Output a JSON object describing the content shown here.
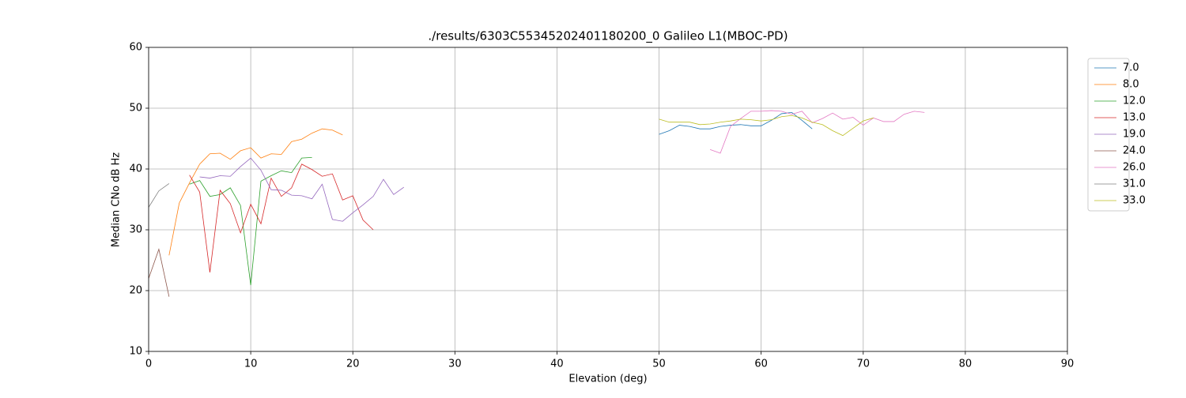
{
  "chart_data": {
    "type": "line",
    "title": "./results/6303C55345202401180200_0 Galileo L1(MBOC-PD)",
    "x_label": "Elevation (deg)",
    "y_label": "Median CNo dB Hz",
    "xlim": [
      0,
      90
    ],
    "ylim": [
      10,
      60
    ],
    "xticks": [
      0,
      10,
      20,
      30,
      40,
      50,
      60,
      70,
      80,
      90
    ],
    "yticks": [
      10,
      20,
      30,
      40,
      50,
      60
    ],
    "grid": true,
    "legend": "upper right outside",
    "series": [
      {
        "name": "7.0",
        "color": "#1f77b4",
        "x": [
          50,
          51,
          52,
          53,
          54,
          55,
          56,
          57,
          58,
          59,
          60,
          61,
          62,
          63,
          64,
          65
        ],
        "values": [
          45.7,
          46.3,
          47.2,
          47.0,
          46.6,
          46.6,
          47.0,
          47.2,
          47.3,
          47.1,
          47.1,
          48.0,
          49.1,
          49.3,
          48.0,
          46.6
        ]
      },
      {
        "name": "8.0",
        "color": "#ff7f0e",
        "x": [
          2,
          3,
          4,
          5,
          6,
          7,
          8,
          9,
          10,
          11,
          12,
          13,
          14,
          15,
          16,
          17,
          18,
          19
        ],
        "values": [
          25.8,
          34.4,
          37.7,
          40.8,
          42.5,
          42.6,
          41.6,
          43.0,
          43.5,
          41.8,
          42.5,
          42.4,
          44.5,
          44.9,
          45.9,
          46.6,
          46.4,
          45.6
        ]
      },
      {
        "name": "12.0",
        "color": "#2ca02c",
        "x": [
          4,
          5,
          6,
          7,
          8,
          9,
          10,
          11,
          12,
          13,
          14,
          15,
          16
        ],
        "values": [
          37.5,
          38.1,
          35.5,
          35.8,
          36.9,
          34.0,
          20.9,
          38.0,
          38.9,
          39.7,
          39.4,
          41.8,
          41.9
        ]
      },
      {
        "name": "13.0",
        "color": "#d62728",
        "x": [
          4,
          5,
          6,
          7,
          8,
          9,
          10,
          11,
          12,
          13,
          14,
          15,
          16,
          17,
          18,
          19,
          20,
          21,
          22
        ],
        "values": [
          39.0,
          36.2,
          23.0,
          36.5,
          34.3,
          29.5,
          34.2,
          31.0,
          38.5,
          35.5,
          36.9,
          40.8,
          39.9,
          38.8,
          39.2,
          34.9,
          35.6,
          31.6,
          30.0
        ]
      },
      {
        "name": "19.0",
        "color": "#9467bd",
        "x": [
          5,
          6,
          7,
          8,
          9,
          10,
          11,
          12,
          13,
          14,
          15,
          16,
          17,
          18,
          19,
          20,
          21,
          22,
          23,
          24,
          25
        ],
        "values": [
          38.7,
          38.5,
          38.9,
          38.8,
          40.4,
          41.8,
          39.8,
          36.6,
          36.5,
          35.7,
          35.6,
          35.1,
          37.5,
          31.7,
          31.4,
          32.8,
          34.1,
          35.5,
          38.3,
          35.8,
          37.0
        ]
      },
      {
        "name": "24.0",
        "color": "#8c564b",
        "x": [
          0,
          1,
          2
        ],
        "values": [
          22.0,
          26.8,
          19.0
        ]
      },
      {
        "name": "26.0",
        "color": "#e377c2",
        "x": [
          55,
          56,
          57,
          58,
          59,
          60,
          61,
          62,
          63,
          64,
          65,
          66,
          67,
          68,
          69,
          70,
          71,
          72,
          73,
          74,
          75,
          76
        ],
        "values": [
          43.2,
          42.6,
          47.0,
          48.3,
          49.5,
          49.5,
          49.6,
          49.5,
          49.0,
          49.5,
          47.6,
          48.3,
          49.2,
          48.2,
          48.5,
          47.2,
          48.4,
          47.8,
          47.8,
          49.0,
          49.5,
          49.3
        ]
      },
      {
        "name": "31.0",
        "color": "#7f7f7f",
        "x": [
          0,
          1,
          2
        ],
        "values": [
          33.7,
          36.4,
          37.6
        ]
      },
      {
        "name": "33.0",
        "color": "#bcbd22",
        "x": [
          50,
          51,
          52,
          53,
          54,
          55,
          56,
          57,
          58,
          59,
          60,
          61,
          62,
          63,
          64,
          65,
          66,
          67,
          68,
          69,
          70,
          71
        ],
        "values": [
          48.2,
          47.7,
          47.7,
          47.7,
          47.3,
          47.4,
          47.7,
          47.9,
          48.2,
          48.1,
          47.9,
          48.1,
          48.6,
          48.8,
          48.4,
          47.7,
          47.3,
          46.3,
          45.5,
          46.7,
          47.9,
          48.4
        ]
      }
    ]
  }
}
